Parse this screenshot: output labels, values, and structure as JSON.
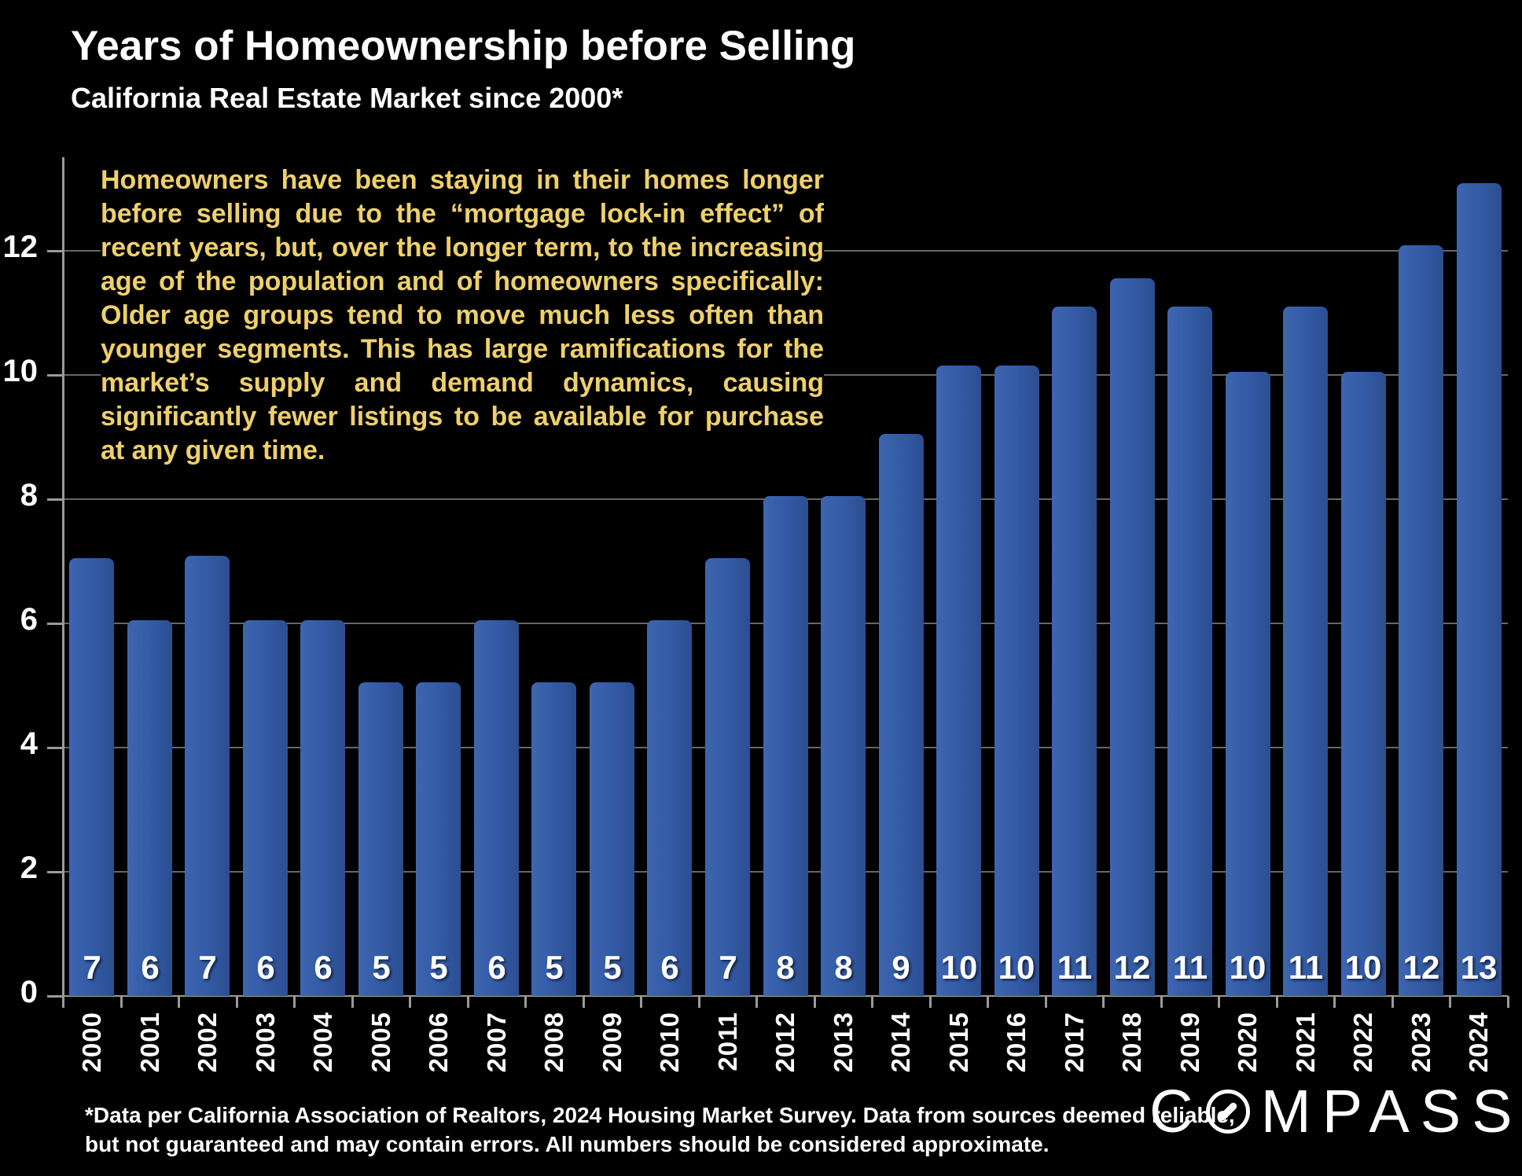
{
  "header": {
    "title": "Years of Homeownership before Selling",
    "subtitle": "California Real Estate Market since 2000*"
  },
  "annotation": {
    "text": "Homeowners have been staying in their homes longer before selling due to the “mortgage lock-in effect” of recent years, but, over the longer term, to the increasing age of the population and of homeowners specifically:  Older age groups tend to move much less often than younger segments. This has large ramifications for the market’s supply and demand dynamics, causing significantly fewer listings to be available for purchase at any given time."
  },
  "chart_data": {
    "type": "bar",
    "title": "Years of Homeownership before Selling",
    "subtitle": "California Real Estate Market since 2000*",
    "categories": [
      "2000",
      "2001",
      "2002",
      "2003",
      "2004",
      "2005",
      "2006",
      "2007",
      "2008",
      "2009",
      "2010",
      "2011",
      "2012",
      "2013",
      "2014",
      "2015",
      "2016",
      "2017",
      "2018",
      "2019",
      "2020",
      "2021",
      "2022",
      "2023",
      "2024"
    ],
    "values": [
      7,
      6,
      7,
      6,
      6,
      5,
      5,
      6,
      5,
      5,
      6,
      7,
      8,
      8,
      9,
      10,
      10,
      11,
      12,
      11,
      10,
      11,
      10,
      12,
      13
    ],
    "bar_heights_precise": [
      7.05,
      6.05,
      7.08,
      6.05,
      6.05,
      5.05,
      5.05,
      6.05,
      5.05,
      5.05,
      6.05,
      7.05,
      8.05,
      8.05,
      9.05,
      10.15,
      10.15,
      11.1,
      11.55,
      11.1,
      10.05,
      11.1,
      10.05,
      12.08,
      13.08
    ],
    "xlabel": "",
    "ylabel": "",
    "ylim": [
      0,
      13.5
    ],
    "yticks": [
      0,
      2,
      4,
      6,
      8,
      10,
      12
    ],
    "grid": "horizontal",
    "legend": "none",
    "bar_color": "#335ba6",
    "value_label_color": "#ffffff",
    "value_label_position": "inside-bottom",
    "x_tick_label_rotation": -90
  },
  "footnote": {
    "lines": [
      "*Data per California Association of Realtors, 2024 Housing Market Survey. Data from sources deemed reliable,",
      "but not guaranteed and may contain errors. All numbers should be considered approximate."
    ]
  },
  "logo": {
    "name": "COMPASS",
    "prefix": "C",
    "suffix": "MPASS"
  },
  "colors": {
    "background": "#000000",
    "bar": "#335ba6",
    "title": "#ffffff",
    "annotation": "#eed06a",
    "axis": "#9a9a9a",
    "gridline": "#6f6f6f",
    "labels": "#ffffff"
  }
}
